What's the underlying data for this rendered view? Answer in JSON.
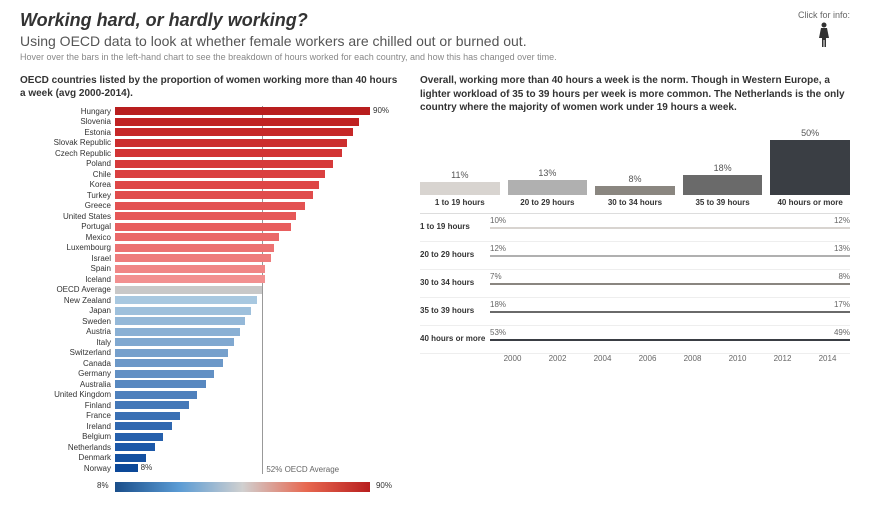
{
  "header": {
    "title": "Working hard, or hardly working?",
    "subtitle": "Using OECD data to look at whether female workers are chilled out or burned out.",
    "hint": "Hover over the bars in the left-hand chart to see the breakdown of hours worked for each country, and how this has changed over time.",
    "info_label": "Click for info:"
  },
  "left_chart": {
    "title": "OECD countries listed by the proportion of women working more than 40 hours a week (avg 2000-2014).",
    "max_val": 90,
    "max_label": "90%",
    "min_label": "8%",
    "avg_val": 52,
    "avg_label": "52% OECD Average",
    "gradient_min": "8%",
    "gradient_max": "90%",
    "gradient_colors": [
      "#1a4e8a",
      "#5a9bd4",
      "#d0d0d0",
      "#e76850",
      "#b81e1e"
    ],
    "bars": [
      {
        "label": "Hungary",
        "value": 90,
        "color": "#b81e1e",
        "show_val": true
      },
      {
        "label": "Slovenia",
        "value": 86,
        "color": "#c02222"
      },
      {
        "label": "Estonia",
        "value": 84,
        "color": "#c62828"
      },
      {
        "label": "Slovak Republic",
        "value": 82,
        "color": "#cc2e2e"
      },
      {
        "label": "Czech Republic",
        "value": 80,
        "color": "#d23434"
      },
      {
        "label": "Poland",
        "value": 77,
        "color": "#d63a3a"
      },
      {
        "label": "Chile",
        "value": 74,
        "color": "#da4040"
      },
      {
        "label": "Korea",
        "value": 72,
        "color": "#de4646"
      },
      {
        "label": "Turkey",
        "value": 70,
        "color": "#e04c4c"
      },
      {
        "label": "Greece",
        "value": 67,
        "color": "#e35252"
      },
      {
        "label": "United States",
        "value": 64,
        "color": "#e65858"
      },
      {
        "label": "Portugal",
        "value": 62,
        "color": "#e85e5e"
      },
      {
        "label": "Mexico",
        "value": 58,
        "color": "#ea6868"
      },
      {
        "label": "Luxembourg",
        "value": 56,
        "color": "#ec7272"
      },
      {
        "label": "Israel",
        "value": 55,
        "color": "#ee7c7c"
      },
      {
        "label": "Spain",
        "value": 53,
        "color": "#f08686"
      },
      {
        "label": "Iceland",
        "value": 53,
        "color": "#f29090"
      },
      {
        "label": "OECD Average",
        "value": 52,
        "color": "#c8c8c8"
      },
      {
        "label": "New Zealand",
        "value": 50,
        "color": "#a8c8e0"
      },
      {
        "label": "Japan",
        "value": 48,
        "color": "#9ec0dc"
      },
      {
        "label": "Sweden",
        "value": 46,
        "color": "#94b8d8"
      },
      {
        "label": "Austria",
        "value": 44,
        "color": "#8ab0d4"
      },
      {
        "label": "Italy",
        "value": 42,
        "color": "#80a8d0"
      },
      {
        "label": "Switzerland",
        "value": 40,
        "color": "#76a0cc"
      },
      {
        "label": "Canada",
        "value": 38,
        "color": "#6c98c8"
      },
      {
        "label": "Germany",
        "value": 35,
        "color": "#6290c4"
      },
      {
        "label": "Australia",
        "value": 32,
        "color": "#5888c0"
      },
      {
        "label": "United Kingdom",
        "value": 29,
        "color": "#4e80bc"
      },
      {
        "label": "Finland",
        "value": 26,
        "color": "#4478b8"
      },
      {
        "label": "France",
        "value": 23,
        "color": "#3a70b4"
      },
      {
        "label": "Ireland",
        "value": 20,
        "color": "#3068b0"
      },
      {
        "label": "Belgium",
        "value": 17,
        "color": "#2660ac"
      },
      {
        "label": "Netherlands",
        "value": 14,
        "color": "#1c58a8"
      },
      {
        "label": "Denmark",
        "value": 11,
        "color": "#1450a0"
      },
      {
        "label": "Norway",
        "value": 8,
        "color": "#0c4898",
        "show_val": true
      }
    ]
  },
  "right_text": "Overall, working more than 40 hours a week is the norm. Though in Western Europe, a lighter workload of 35 to 39 hours per week is more common. The Netherlands is the only country where the majority of women work under 19 hours a week.",
  "hour_chart": {
    "max_pct": 50,
    "bars": [
      {
        "pct": 11,
        "label": "1 to 19 hours",
        "color": "#d8d4d0",
        "pct_label": "11%"
      },
      {
        "pct": 13,
        "label": "20 to 29 hours",
        "color": "#b0b0b0",
        "pct_label": "13%"
      },
      {
        "pct": 8,
        "label": "30 to 34 hours",
        "color": "#8a8680",
        "pct_label": "8%"
      },
      {
        "pct": 18,
        "label": "35 to 39 hours",
        "color": "#6a6a6a",
        "pct_label": "18%"
      },
      {
        "pct": 50,
        "label": "40 hours or more",
        "color": "#3a3e44",
        "pct_label": "50%"
      }
    ]
  },
  "line_chart": {
    "rows": [
      {
        "label": "1 to 19 hours",
        "start": "10%",
        "end": "12%",
        "color": "#d8d4d0"
      },
      {
        "label": "20 to 29 hours",
        "start": "12%",
        "end": "13%",
        "color": "#b0b0b0"
      },
      {
        "label": "30 to 34 hours",
        "start": "7%",
        "end": "8%",
        "color": "#8a8680"
      },
      {
        "label": "35 to 39 hours",
        "start": "18%",
        "end": "17%",
        "color": "#6a6a6a"
      },
      {
        "label": "40 hours or more",
        "start": "53%",
        "end": "49%",
        "color": "#3a3e44"
      }
    ],
    "x_ticks": [
      "2000",
      "2002",
      "2004",
      "2006",
      "2008",
      "2010",
      "2012",
      "2014"
    ]
  }
}
